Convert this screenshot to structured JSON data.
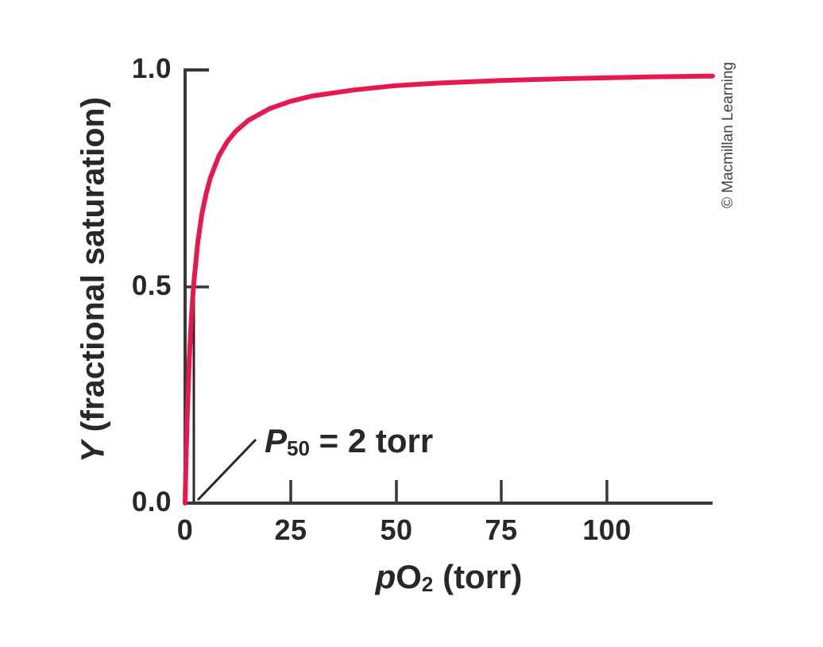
{
  "figure": {
    "credit": "© Macmillan Learning",
    "y_axis": {
      "label_italic": "Y",
      "label_rest": " (fractional saturation)",
      "ticks": [
        "1.0",
        "0.5",
        "0.0"
      ]
    },
    "x_axis": {
      "label_italic": "p",
      "label_main": "O",
      "label_sub": "2",
      "label_rest": " (torr)",
      "ticks": [
        "0",
        "25",
        "50",
        "75",
        "100"
      ]
    },
    "annotation": {
      "label_italic": "P",
      "label_sub": "50",
      "label_rest": " = 2 torr"
    }
  },
  "chart_data": {
    "type": "line",
    "title": "",
    "xlabel": "pO2 (torr)",
    "ylabel": "Y (fractional saturation)",
    "xlim": [
      0,
      125
    ],
    "ylim": [
      0,
      1.0
    ],
    "x_ticks": [
      0,
      25,
      50,
      75,
      100
    ],
    "y_ticks": [
      0.0,
      0.5,
      1.0
    ],
    "grid": false,
    "legend": false,
    "line_color": "#E8184F",
    "axis_color": "#3a3537",
    "annotations": [
      {
        "text": "P50 = 2 torr",
        "P50_torr": 2,
        "marker_line": {
          "x": 2,
          "y_from": 0.0,
          "y_to": 0.5
        }
      }
    ],
    "series": [
      {
        "name": "fractional saturation",
        "relation": "Y = pO2 / (2 + pO2)",
        "P50_torr": 2,
        "x": [
          0,
          0.25,
          0.5,
          1,
          1.5,
          2,
          3,
          4,
          5,
          6,
          8,
          10,
          12,
          15,
          20,
          25,
          30,
          40,
          50,
          60,
          75,
          90,
          100,
          110,
          125
        ],
        "y": [
          0,
          0.111,
          0.2,
          0.333,
          0.429,
          0.5,
          0.6,
          0.667,
          0.714,
          0.75,
          0.8,
          0.833,
          0.857,
          0.882,
          0.909,
          0.926,
          0.938,
          0.952,
          0.962,
          0.968,
          0.974,
          0.978,
          0.98,
          0.982,
          0.984
        ]
      }
    ]
  }
}
